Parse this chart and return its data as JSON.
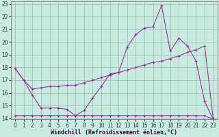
{
  "xlabel": "Windchill (Refroidissement éolien,°C)",
  "background_color": "#c8eae0",
  "grid_color": "#99bbaa",
  "line_color": "#993399",
  "xlim": [
    0,
    23
  ],
  "ylim": [
    13.9,
    23.2
  ],
  "xticks": [
    0,
    1,
    2,
    3,
    4,
    5,
    6,
    7,
    8,
    9,
    10,
    11,
    12,
    13,
    14,
    15,
    16,
    17,
    18,
    19,
    20,
    21,
    22,
    23
  ],
  "yticks": [
    14,
    15,
    16,
    17,
    18,
    19,
    20,
    21,
    22,
    23
  ],
  "s1_x": [
    0,
    1,
    2,
    3,
    4,
    5,
    6,
    7,
    8,
    9,
    10,
    11,
    12,
    13,
    14,
    15,
    16,
    17,
    18,
    19,
    20,
    21,
    22,
    23
  ],
  "s1_y": [
    17.9,
    17.0,
    15.8,
    14.8,
    14.8,
    14.8,
    14.7,
    14.2,
    14.6,
    15.6,
    16.5,
    17.5,
    17.6,
    19.6,
    20.6,
    21.1,
    21.2,
    22.9,
    19.3,
    20.3,
    19.7,
    18.5,
    15.3,
    13.9
  ],
  "s2_x": [
    0,
    1,
    2,
    3,
    4,
    5,
    6,
    7,
    8,
    9,
    10,
    11,
    12,
    13,
    14,
    15,
    16,
    17,
    18,
    19,
    20,
    21,
    22,
    23
  ],
  "s2_y": [
    17.9,
    17.0,
    16.3,
    16.4,
    16.5,
    16.5,
    16.6,
    16.6,
    16.8,
    17.0,
    17.2,
    17.4,
    17.6,
    17.8,
    18.0,
    18.2,
    18.4,
    18.5,
    18.7,
    18.9,
    19.2,
    19.4,
    19.7,
    13.9
  ],
  "s3_x": [
    0,
    1,
    2,
    3,
    4,
    5,
    6,
    7,
    8,
    9,
    10,
    11,
    12,
    13,
    14,
    15,
    16,
    17,
    18,
    19,
    20,
    21,
    22,
    23
  ],
  "s3_y": [
    14.2,
    14.2,
    14.2,
    14.2,
    14.2,
    14.2,
    14.2,
    14.2,
    14.2,
    14.2,
    14.2,
    14.2,
    14.2,
    14.2,
    14.2,
    14.2,
    14.2,
    14.2,
    14.2,
    14.2,
    14.2,
    14.2,
    14.2,
    13.9
  ],
  "tick_fontsize": 5.5,
  "xlabel_fontsize": 6.0
}
